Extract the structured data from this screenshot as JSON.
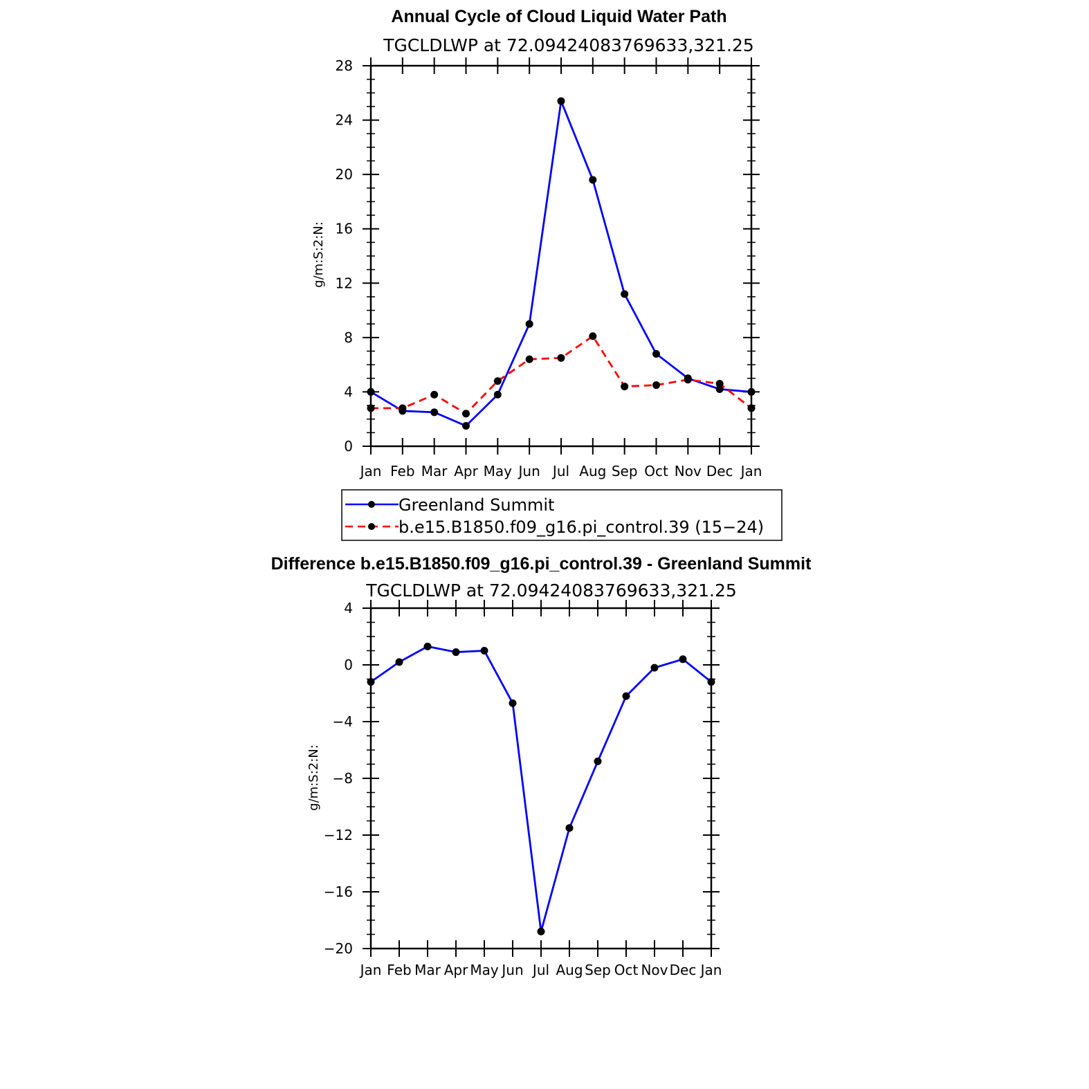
{
  "chart_data": [
    {
      "type": "line",
      "title": "Annual Cycle of Cloud Liquid Water Path",
      "subtitle": "TGCLDLWP  at  72.09424083769633,321.25",
      "ylabel": "g/m:S:2:N:",
      "xlabel": "",
      "categories": [
        "Jan",
        "Feb",
        "Mar",
        "Apr",
        "May",
        "Jun",
        "Jul",
        "Aug",
        "Sep",
        "Oct",
        "Nov",
        "Dec",
        "Jan"
      ],
      "ylim": [
        0,
        28
      ],
      "yticks": [
        "0",
        "4",
        "8",
        "12",
        "16",
        "20",
        "24",
        "28"
      ],
      "series": [
        {
          "name": "Greenland Summit",
          "color": "#0000ff",
          "dash": "solid",
          "values": [
            4.0,
            2.6,
            2.5,
            1.5,
            3.8,
            9.0,
            25.4,
            19.6,
            11.2,
            6.8,
            5.0,
            4.2,
            4.0
          ]
        },
        {
          "name": "b.e15.B1850.f09_g16.pi_control.39 (15−24)",
          "color": "#ff0000",
          "dash": "dashed",
          "values": [
            2.8,
            2.8,
            3.8,
            2.4,
            4.8,
            6.4,
            6.5,
            8.1,
            4.4,
            4.5,
            4.9,
            4.6,
            2.8
          ]
        }
      ],
      "legend": "below"
    },
    {
      "type": "line",
      "title": "Difference b.e15.B1850.f09_g16.pi_control.39 - Greenland Summit",
      "subtitle": "TGCLDLWP  at  72.09424083769633,321.25",
      "ylabel": "g/m:S:2:N:",
      "xlabel": "",
      "categories": [
        "Jan",
        "Feb",
        "Mar",
        "Apr",
        "May",
        "Jun",
        "Jul",
        "Aug",
        "Sep",
        "Oct",
        "Nov",
        "Dec",
        "Jan"
      ],
      "ylim": [
        -20,
        4
      ],
      "yticks": [
        "−20",
        "−16",
        "−12",
        "−8",
        "−4",
        "0",
        "4"
      ],
      "series": [
        {
          "color": "#0000ff",
          "dash": "solid",
          "values": [
            -1.2,
            0.2,
            1.3,
            0.9,
            1.0,
            -2.7,
            -18.8,
            -11.5,
            -6.8,
            -2.2,
            -0.2,
            0.4,
            -1.2
          ]
        }
      ]
    }
  ]
}
